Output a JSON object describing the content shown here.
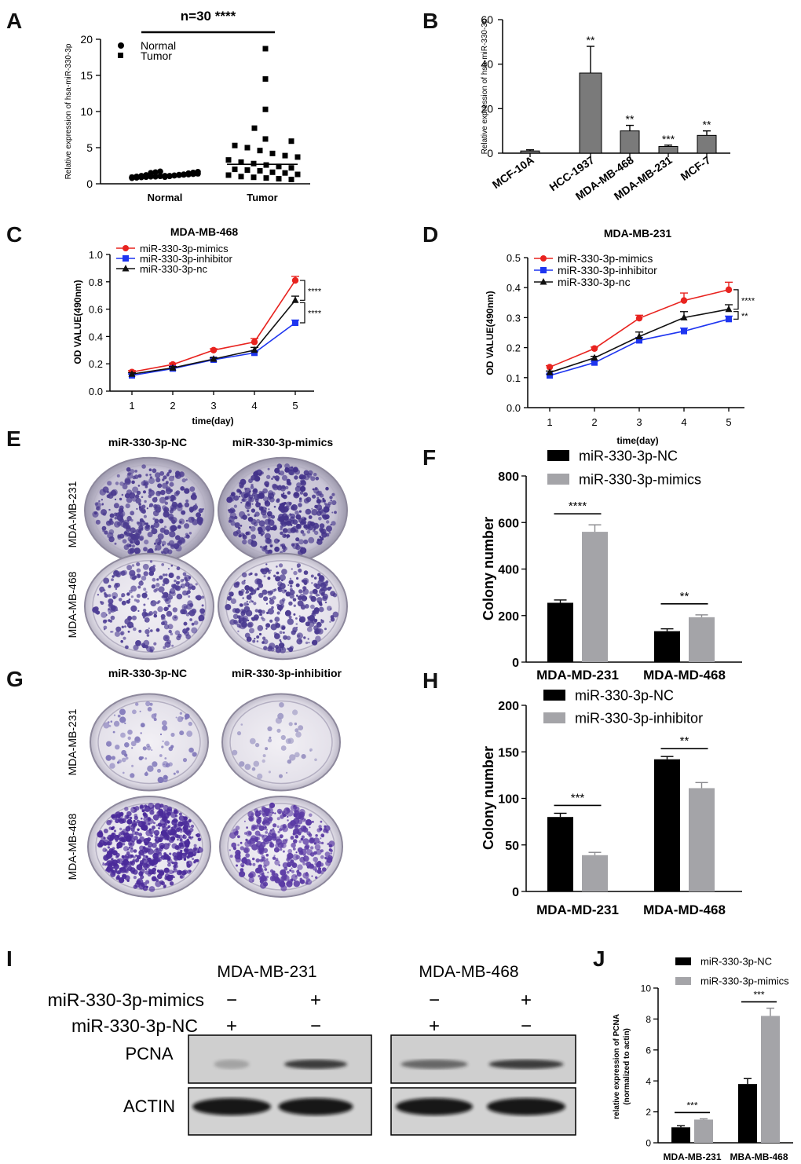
{
  "panels": {
    "A": "A",
    "B": "B",
    "C": "C",
    "D": "D",
    "E": "E",
    "F": "F",
    "G": "G",
    "H": "H",
    "I": "I",
    "J": "J"
  },
  "colors": {
    "red": "#e8231f",
    "blue": "#1e35f0",
    "black": "#111111",
    "gray": "#a4a4a8",
    "darkgray": "#7a7a7a"
  },
  "chart_data": [
    {
      "id": "A",
      "type": "scatter",
      "title": "n=30 ****",
      "ylabel": "Relative expression of hsa-miR-330-3p",
      "categories": [
        "Normal",
        "Tumor"
      ],
      "legend": [
        "Normal",
        "Tumor"
      ],
      "ylim": [
        0,
        20
      ],
      "yticks": [
        0,
        5,
        10,
        15,
        20
      ],
      "series": [
        {
          "name": "Normal",
          "marker": "circle",
          "values": [
            0.8,
            0.85,
            0.9,
            0.95,
            1.0,
            1.0,
            1.05,
            1.1,
            1.1,
            1.15,
            1.2,
            1.25,
            1.3,
            1.35,
            1.4,
            0.9,
            1.0,
            1.1,
            1.2,
            1.5,
            1.6,
            1.7,
            0.95,
            1.05,
            1.15,
            1.25,
            1.3,
            1.45,
            1.55,
            1.65
          ]
        },
        {
          "name": "Tumor",
          "marker": "square",
          "values": [
            18.7,
            14.5,
            10.3,
            7.7,
            6.2,
            5.9,
            5.3,
            5.0,
            4.6,
            4.2,
            3.9,
            3.7,
            3.3,
            3.0,
            2.8,
            2.6,
            2.4,
            2.2,
            2.0,
            1.9,
            1.8,
            1.6,
            1.5,
            1.3,
            1.2,
            1.0,
            0.9,
            0.8,
            0.7,
            0.6
          ]
        }
      ]
    },
    {
      "id": "B",
      "type": "bar",
      "ylabel": "Relative expression of hsa-miR-330-3p",
      "categories": [
        "MCF-10A",
        "HCC-1937",
        "MDA-MB-468",
        "MDA-MB-231",
        "MCF-7"
      ],
      "values": [
        1,
        36,
        10,
        3,
        8
      ],
      "errors": [
        0.5,
        12,
        2.5,
        0.6,
        2
      ],
      "significance": [
        "",
        "**",
        "**",
        "***",
        "**"
      ],
      "ylim": [
        0,
        60
      ],
      "yticks": [
        0,
        20,
        40,
        60
      ]
    },
    {
      "id": "C",
      "type": "line",
      "title": "MDA-MB-468",
      "xlabel": "time(day)",
      "ylabel": "OD VALUE(490nm)",
      "x": [
        1,
        2,
        3,
        4,
        5
      ],
      "ylim": [
        0,
        1.0
      ],
      "yticks": [
        "0.0",
        "0.2",
        "0.4",
        "0.6",
        "0.8",
        "1.0"
      ],
      "series": [
        {
          "name": "miR-330-3p-mimics",
          "color": "#e8231f",
          "marker": "circle",
          "values": [
            0.14,
            0.195,
            0.3,
            0.36,
            0.81
          ],
          "errors": [
            0.01,
            0.01,
            0.01,
            0.025,
            0.03
          ]
        },
        {
          "name": "miR-330-3p-inhibitor",
          "color": "#1e35f0",
          "marker": "square",
          "values": [
            0.115,
            0.165,
            0.23,
            0.28,
            0.5
          ],
          "errors": [
            0.01,
            0.01,
            0.01,
            0.01,
            0.02
          ]
        },
        {
          "name": "miR-330-3p-nc",
          "color": "#111111",
          "marker": "triangle",
          "values": [
            0.125,
            0.17,
            0.235,
            0.3,
            0.665
          ],
          "errors": [
            0.01,
            0.01,
            0.01,
            0.02,
            0.03
          ]
        }
      ],
      "significance": [
        "****",
        "****"
      ]
    },
    {
      "id": "D",
      "type": "line",
      "title": "MDA-MB-231",
      "xlabel": "time(day)",
      "ylabel": "OD VALUE(490nm)",
      "x": [
        1,
        2,
        3,
        4,
        5
      ],
      "ylim": [
        0,
        0.5
      ],
      "yticks": [
        "0.0",
        "0.1",
        "0.2",
        "0.3",
        "0.4",
        "0.5"
      ],
      "series": [
        {
          "name": "miR-330-3p-mimics",
          "color": "#e8231f",
          "marker": "circle",
          "values": [
            0.135,
            0.197,
            0.298,
            0.357,
            0.393
          ],
          "errors": [
            0.005,
            0.005,
            0.01,
            0.025,
            0.025
          ]
        },
        {
          "name": "miR-330-3p-inhibitor",
          "color": "#1e35f0",
          "marker": "square",
          "values": [
            0.107,
            0.15,
            0.224,
            0.255,
            0.295
          ],
          "errors": [
            0.005,
            0.005,
            0.01,
            0.01,
            0.01
          ]
        },
        {
          "name": "miR-330-3p-nc",
          "color": "#111111",
          "marker": "triangle",
          "values": [
            0.117,
            0.166,
            0.237,
            0.3,
            0.328
          ],
          "errors": [
            0.005,
            0.005,
            0.015,
            0.02,
            0.015
          ]
        }
      ],
      "significance": [
        "****",
        "**"
      ]
    },
    {
      "id": "F",
      "type": "bar",
      "ylabel": "Colony number",
      "categories": [
        "MDA-MD-231",
        "MDA-MD-468"
      ],
      "ylim": [
        0,
        800
      ],
      "yticks": [
        0,
        200,
        400,
        600,
        800
      ],
      "series": [
        {
          "name": "miR-330-3p-NC",
          "color": "#000000",
          "values": [
            255,
            133
          ],
          "errors": [
            12,
            10
          ]
        },
        {
          "name": "miR-330-3p-mimics",
          "color": "#a4a4a8",
          "values": [
            560,
            193
          ],
          "errors": [
            30,
            10
          ]
        }
      ],
      "significance": [
        "****",
        "**"
      ]
    },
    {
      "id": "H",
      "type": "bar",
      "ylabel": "Colony number",
      "categories": [
        "MDA-MD-231",
        "MDA-MD-468"
      ],
      "ylim": [
        0,
        200
      ],
      "yticks": [
        0,
        50,
        100,
        150,
        200
      ],
      "series": [
        {
          "name": "miR-330-3p-NC",
          "color": "#000000",
          "values": [
            80,
            142
          ],
          "errors": [
            4,
            3
          ]
        },
        {
          "name": "miR-330-3p-inhibitor",
          "color": "#a4a4a8",
          "values": [
            39,
            111
          ],
          "errors": [
            3,
            6
          ]
        }
      ],
      "significance": [
        "***",
        "**"
      ]
    },
    {
      "id": "J",
      "type": "bar",
      "ylabel": "relative expression of PCNA",
      "ylabel2": "(normalized to actin)",
      "categories": [
        "MDA-MB-231",
        "MBA-MB-468"
      ],
      "ylim": [
        0,
        10
      ],
      "yticks": [
        0,
        2,
        4,
        6,
        8,
        10
      ],
      "series": [
        {
          "name": "miR-330-3p-NC",
          "color": "#000000",
          "values": [
            1.0,
            3.8
          ],
          "errors": [
            0.1,
            0.35
          ]
        },
        {
          "name": "miR-330-3p-mimics",
          "color": "#a4a4a8",
          "values": [
            1.5,
            8.2
          ],
          "errors": [
            0.05,
            0.5
          ]
        }
      ],
      "significance": [
        "***",
        "***"
      ]
    }
  ],
  "panelE": {
    "columns": [
      "miR-330-3p-NC",
      "miR-330-3p-mimics"
    ],
    "rows": [
      "MDA-MB-231",
      "MDA-MB-468"
    ]
  },
  "panelG": {
    "columns": [
      "miR-330-3p-NC",
      "miR-330-3p-inhibitior"
    ],
    "rows": [
      "MDA-MB-231",
      "MDA-MB-468"
    ]
  },
  "panelI": {
    "groups": [
      "MDA-MB-231",
      "MDA-MB-468"
    ],
    "conditions": [
      "miR-330-3p-mimics",
      "miR-330-3p-NC"
    ],
    "signs": {
      "mimics": [
        "−",
        "+",
        "−",
        "+"
      ],
      "nc": [
        "+",
        "−",
        "+",
        "−"
      ]
    },
    "bands": [
      "PCNA",
      "ACTIN"
    ]
  }
}
